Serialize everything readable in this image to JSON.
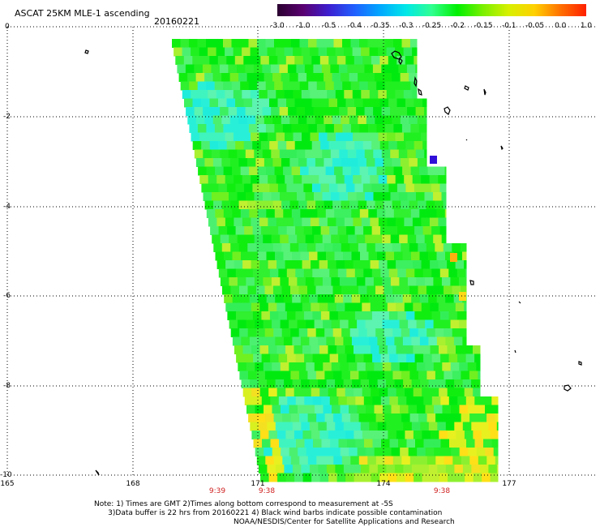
{
  "header": {
    "title": "ASCAT 25KM MLE-1 ascending",
    "date": "20160221"
  },
  "colorbar": {
    "labels": [
      "-3.0",
      "-1.0",
      "-0.5",
      "-0.4",
      "-0.35",
      "-0.3",
      "-0.25",
      "-0.2",
      "-0.15",
      "-0.1",
      "-0.05",
      "0.0",
      "1.0"
    ],
    "colors": [
      "#2a0030",
      "#5a0070",
      "#3c1fd0",
      "#2060ff",
      "#00a8ff",
      "#00e8e8",
      "#30ff90",
      "#00f000",
      "#7cf000",
      "#d8f000",
      "#ffd000",
      "#ff7000",
      "#ff2000"
    ]
  },
  "axes": {
    "y_ticks": [
      "0",
      "-2",
      "-4",
      "-6",
      "-8",
      "-10"
    ],
    "x_ticks": [
      "165",
      "168",
      "171",
      "174",
      "177"
    ]
  },
  "times": [
    "9:39",
    "9:38",
    "9:38"
  ],
  "footer": {
    "note_line1": "Note: 1) Times are GMT 2)Times along bottom correspond to measurement at -5S",
    "note_line2": "3)Data buffer is 22 hrs from 20160221 4) Black wind barbs indicate possible contamination",
    "credit": "NOAA/NESDIS/Center for Satellite Applications and Research"
  }
}
